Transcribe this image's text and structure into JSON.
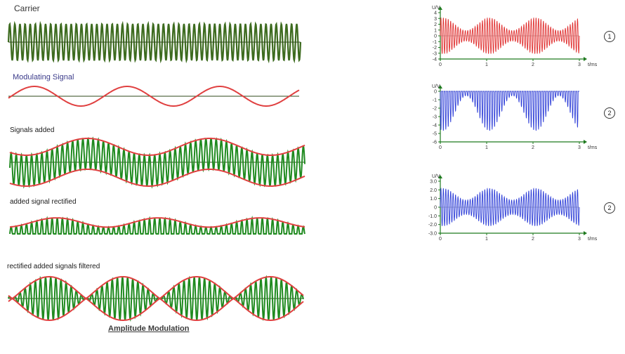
{
  "labels": {
    "carrier": "Carrier",
    "modulating": "Modulating Signal",
    "added": "Signals added",
    "rectified": "added signal rectified",
    "filtered": "rectified added signals filtered",
    "caption": "Amplitude Modulation"
  },
  "plots": [
    {
      "marker": "1",
      "color": "#e03030",
      "ylabel": "U/V",
      "xlabel": "t/ms",
      "yticks": [
        "4",
        "3",
        "2",
        "1",
        "0",
        "-1",
        "-2",
        "-3",
        "-4"
      ],
      "xticks": [
        "0",
        "1",
        "2",
        "3"
      ],
      "ylim": [
        -4,
        4
      ]
    },
    {
      "marker": "2",
      "color": "#3040d8",
      "ylabel": "U/V",
      "xlabel": "t/ms",
      "yticks": [
        "0",
        "-1",
        "-2",
        "-3",
        "-4",
        "-5",
        "-6"
      ],
      "xticks": [
        "0",
        "1",
        "2",
        "3"
      ],
      "ylim": [
        -6,
        0
      ]
    },
    {
      "marker": "2",
      "color": "#3040d8",
      "ylabel": "U/V",
      "xlabel": "t/ms",
      "yticks": [
        "3.0",
        "2.0",
        "1.0",
        "0",
        "-1.0",
        "-2.0",
        "-3.0"
      ],
      "xticks": [
        "0",
        "1",
        "2",
        "3"
      ],
      "ylim": [
        -3,
        3
      ]
    }
  ],
  "colors": {
    "carrier": "#3d6b1f",
    "wave": "#1f8a1f",
    "envelope": "#e04040",
    "baseline": "#2e4a1a"
  }
}
